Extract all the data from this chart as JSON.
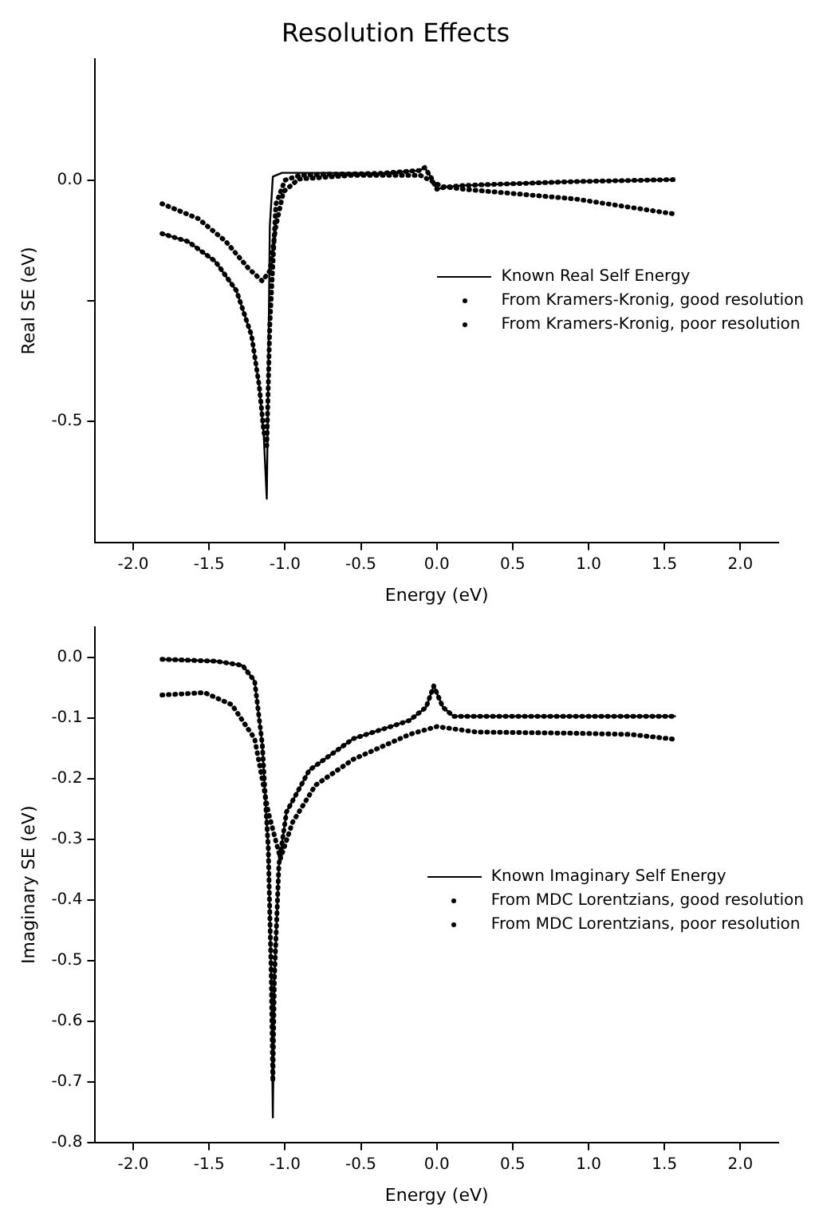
{
  "chart_data": [
    {
      "type": "line",
      "title": "Resolution Effects",
      "xlabel": "Energy (eV)",
      "ylabel": "Real SE (eV)",
      "xlim": [
        -2.25,
        2.25
      ],
      "ylim": [
        -0.75,
        0.25
      ],
      "xticks": [
        {
          "value": -2,
          "label": "-2.0"
        },
        {
          "value": -1.5,
          "label": "-1.5"
        },
        {
          "value": -1,
          "label": "-1.0"
        },
        {
          "value": -0.5,
          "label": "-0.5"
        },
        {
          "value": 0,
          "label": "0.0"
        },
        {
          "value": 0.5,
          "label": "0.5"
        },
        {
          "value": 1,
          "label": "1.0"
        },
        {
          "value": 1.5,
          "label": "1.5"
        },
        {
          "value": 2,
          "label": "2.0"
        }
      ],
      "yticks": [
        {
          "value": 0,
          "label": "0.0"
        },
        {
          "value": -0.25,
          "label": null
        },
        {
          "value": -0.5,
          "label": "-0.5"
        }
      ],
      "legend": "right",
      "grid": false,
      "series": [
        {
          "name": "Known Real Self Energy",
          "line_style": "solid",
          "color": "#000000",
          "x": [
            -1.81,
            -1.64,
            -1.46,
            -1.32,
            -1.22,
            -1.17,
            -1.14,
            -1.12,
            -1.11,
            -1.1,
            -1.08,
            -1.02,
            -0.73,
            -0.37,
            -0.11,
            -0.08,
            -0.04,
            0,
            0.05,
            0.18,
            0.91,
            1.56
          ],
          "values": [
            -0.111,
            -0.127,
            -0.168,
            -0.229,
            -0.322,
            -0.425,
            -0.528,
            -0.66,
            -0.4,
            -0.096,
            0.007,
            0.015,
            0.015,
            0.014,
            0.02,
            0.026,
            0.007,
            -0.019,
            -0.015,
            -0.011,
            -0.003,
            0.001
          ]
        },
        {
          "name": "From Kramers-Kronig, good resolution",
          "line_style": "dotted",
          "color": "#000000",
          "x": [
            -1.81,
            -1.64,
            -1.46,
            -1.32,
            -1.22,
            -1.17,
            -1.14,
            -1.12,
            -1.1,
            -1.06,
            -1.0,
            -0.9,
            -0.73,
            -0.37,
            -0.11,
            -0.08,
            -0.04,
            0,
            0.05,
            0.18,
            0.91,
            1.56
          ],
          "values": [
            -0.111,
            -0.127,
            -0.168,
            -0.229,
            -0.322,
            -0.425,
            -0.52,
            -0.55,
            -0.3,
            -0.05,
            0.0,
            0.01,
            0.012,
            0.014,
            0.02,
            0.026,
            0.007,
            -0.019,
            -0.015,
            -0.011,
            -0.003,
            0.001
          ]
        },
        {
          "name": "From Kramers-Kronig, poor resolution",
          "line_style": "dotted",
          "color": "#000000",
          "x": [
            -1.81,
            -1.57,
            -1.39,
            -1.24,
            -1.15,
            -1.1,
            -1.06,
            -1.01,
            -0.91,
            -0.55,
            -0.11,
            -0.04,
            0.03,
            0.18,
            0.91,
            1.56
          ],
          "values": [
            -0.049,
            -0.08,
            -0.127,
            -0.183,
            -0.209,
            -0.188,
            -0.096,
            -0.024,
            0.002,
            0.01,
            0.01,
            -0.001,
            -0.013,
            -0.019,
            -0.039,
            -0.07
          ]
        }
      ]
    },
    {
      "type": "line",
      "xlabel": "Energy (eV)",
      "ylabel": "Imaginary SE (eV)",
      "xlim": [
        -2.25,
        2.25
      ],
      "ylim": [
        -0.8,
        0.05
      ],
      "xticks": [
        {
          "value": -2,
          "label": "-2.0"
        },
        {
          "value": -1.5,
          "label": "-1.5"
        },
        {
          "value": -1,
          "label": "-1.0"
        },
        {
          "value": -0.5,
          "label": "-0.5"
        },
        {
          "value": 0,
          "label": "0.0"
        },
        {
          "value": 0.5,
          "label": "0.5"
        },
        {
          "value": 1,
          "label": "1.0"
        },
        {
          "value": 1.5,
          "label": "1.5"
        },
        {
          "value": 2,
          "label": "2.0"
        }
      ],
      "yticks": [
        {
          "value": 0,
          "label": "0.0"
        },
        {
          "value": -0.1,
          "label": "-0.1"
        },
        {
          "value": -0.2,
          "label": "-0.2"
        },
        {
          "value": -0.3,
          "label": "-0.3"
        },
        {
          "value": -0.4,
          "label": "-0.4"
        },
        {
          "value": -0.5,
          "label": "-0.5"
        },
        {
          "value": -0.6,
          "label": "-0.6"
        },
        {
          "value": -0.7,
          "label": "-0.7"
        },
        {
          "value": -0.8,
          "label": "-0.8"
        }
      ],
      "legend": "right",
      "grid": false,
      "series": [
        {
          "name": "Known Imaginary Self Energy",
          "line_style": "solid",
          "color": "#000000",
          "x": [
            -1.81,
            -1.46,
            -1.28,
            -1.2,
            -1.15,
            -1.11,
            -1.09,
            -1.08,
            -1.07,
            -1.04,
            -0.99,
            -0.84,
            -0.55,
            -0.18,
            -0.07,
            -0.02,
            0.04,
            0.11,
            0.91,
            1.57
          ],
          "values": [
            -0.003,
            -0.006,
            -0.013,
            -0.039,
            -0.142,
            -0.315,
            -0.531,
            -0.759,
            -0.531,
            -0.341,
            -0.255,
            -0.186,
            -0.134,
            -0.104,
            -0.082,
            -0.047,
            -0.082,
            -0.097,
            -0.097,
            -0.097
          ]
        },
        {
          "name": "From MDC Lorentzians, good resolution",
          "line_style": "dotted",
          "color": "#000000",
          "x": [
            -1.81,
            -1.46,
            -1.28,
            -1.2,
            -1.15,
            -1.11,
            -1.09,
            -1.08,
            -1.07,
            -1.04,
            -0.99,
            -0.84,
            -0.55,
            -0.18,
            -0.07,
            -0.02,
            0.04,
            0.11,
            0.91,
            1.57
          ],
          "values": [
            -0.003,
            -0.006,
            -0.013,
            -0.039,
            -0.142,
            -0.315,
            -0.53,
            -0.7,
            -0.53,
            -0.341,
            -0.255,
            -0.186,
            -0.134,
            -0.104,
            -0.082,
            -0.047,
            -0.082,
            -0.097,
            -0.097,
            -0.097
          ]
        },
        {
          "name": "From MDC Lorentzians, poor resolution",
          "line_style": "dotted",
          "color": "#000000",
          "x": [
            -1.81,
            -1.53,
            -1.35,
            -1.2,
            -1.11,
            -1.03,
            -0.95,
            -0.8,
            -0.55,
            -0.18,
            0,
            0.26,
            0.91,
            1.28,
            1.57
          ],
          "values": [
            -0.062,
            -0.058,
            -0.078,
            -0.134,
            -0.255,
            -0.332,
            -0.272,
            -0.211,
            -0.168,
            -0.127,
            -0.114,
            -0.123,
            -0.125,
            -0.127,
            -0.135
          ]
        }
      ]
    }
  ]
}
